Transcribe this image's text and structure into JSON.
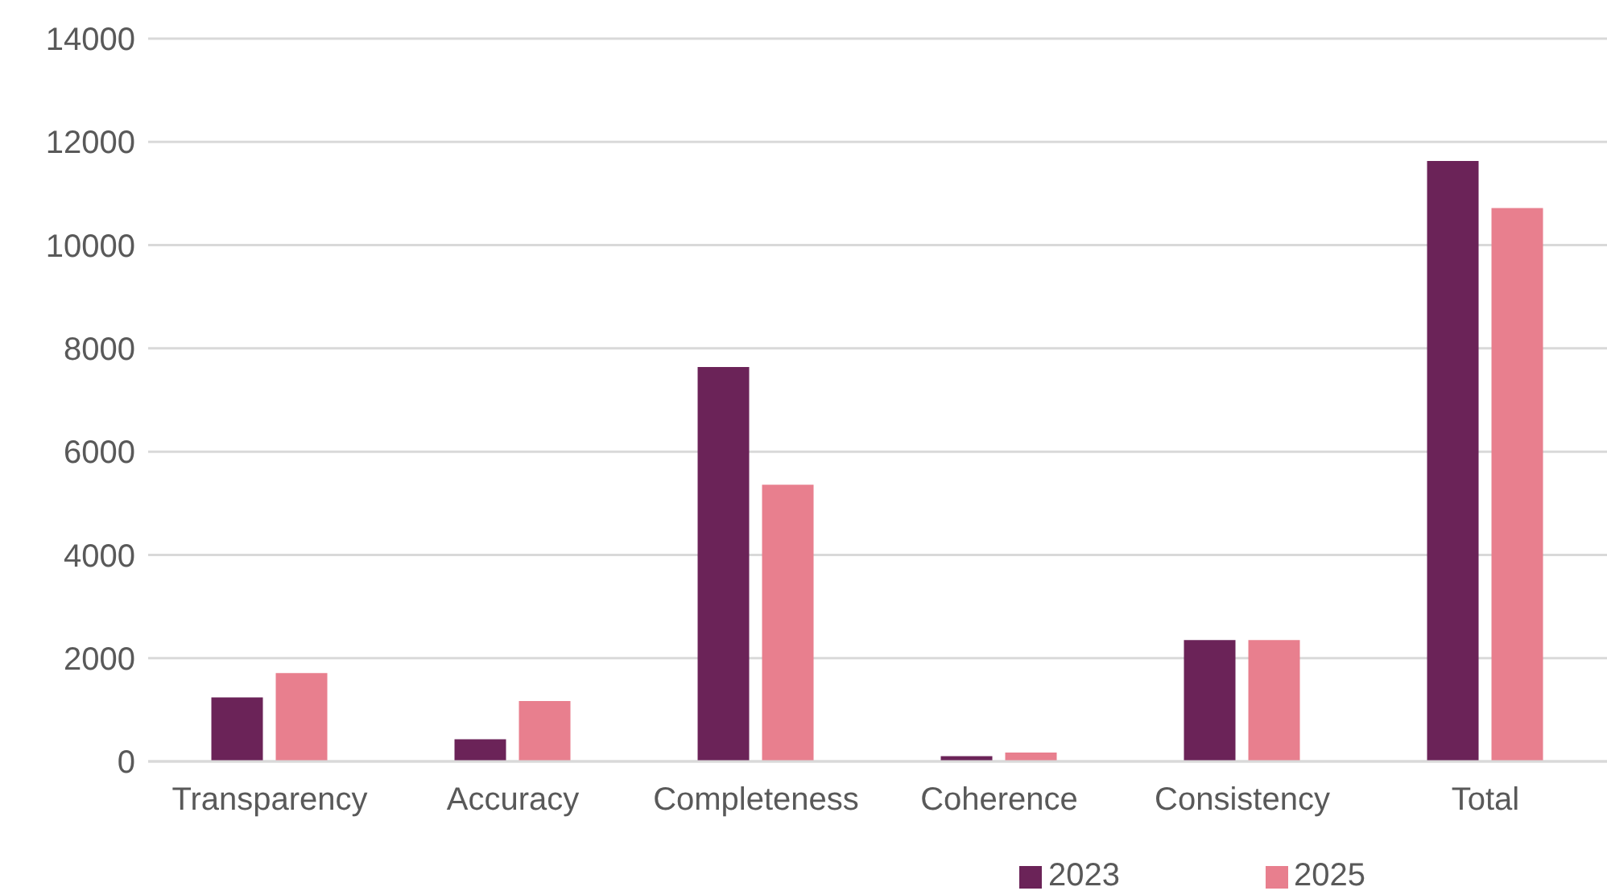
{
  "chart_data": {
    "type": "bar",
    "categories": [
      "Transparency",
      "Accuracy",
      "Completeness",
      "Coherence",
      "Consistency",
      "Total"
    ],
    "series": [
      {
        "name": "2023",
        "color": "#6b2358",
        "values": [
          1240,
          430,
          7640,
          100,
          2350,
          11630
        ]
      },
      {
        "name": "2025",
        "color": "#e87f8e",
        "values": [
          1710,
          1170,
          5360,
          170,
          2350,
          10720
        ]
      }
    ],
    "ylim": [
      0,
      14000
    ],
    "yticks": [
      0,
      2000,
      4000,
      6000,
      8000,
      10000,
      12000,
      14000
    ],
    "grid": "y",
    "legend": "bottom right"
  }
}
